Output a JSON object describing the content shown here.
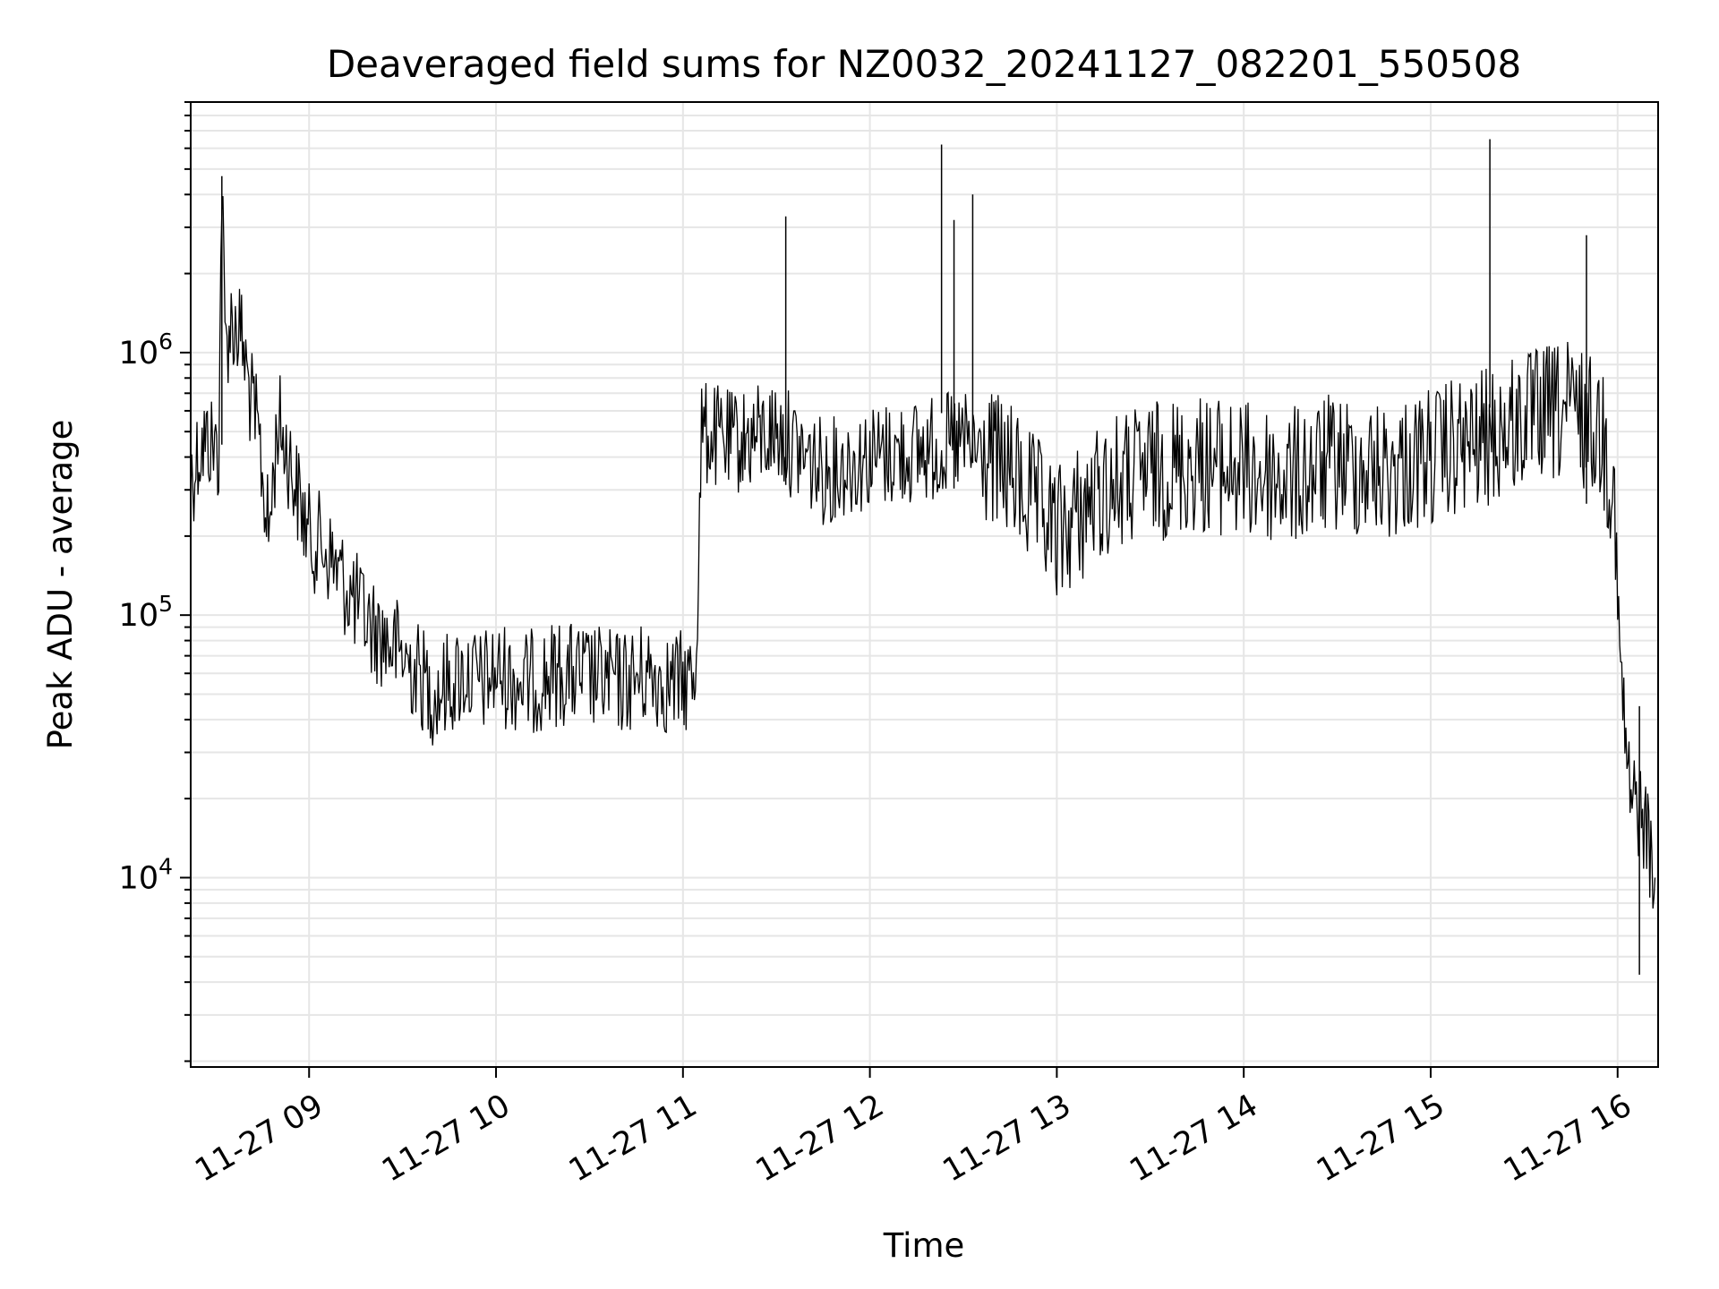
{
  "chart_data": {
    "type": "line",
    "title": "Deaveraged field sums for NZ0032_20241127_082201_550508",
    "xlabel": "Time",
    "ylabel": "Peak ADU - average",
    "yscale": "log",
    "ylim": [
      1900,
      9000000
    ],
    "xlim": [
      "2024-11-27 08:22",
      "2024-11-27 16:13"
    ],
    "grid": true,
    "line_color": "#000000",
    "grid_color": "#e6e6e6",
    "x_ticks": [
      {
        "value": "2024-11-27 09:00",
        "label": "11-27 09"
      },
      {
        "value": "2024-11-27 10:00",
        "label": "11-27 10"
      },
      {
        "value": "2024-11-27 11:00",
        "label": "11-27 11"
      },
      {
        "value": "2024-11-27 12:00",
        "label": "11-27 12"
      },
      {
        "value": "2024-11-27 13:00",
        "label": "11-27 13"
      },
      {
        "value": "2024-11-27 14:00",
        "label": "11-27 14"
      },
      {
        "value": "2024-11-27 15:00",
        "label": "11-27 15"
      },
      {
        "value": "2024-11-27 16:00",
        "label": "11-27 16"
      }
    ],
    "y_ticks": [
      {
        "value": 10000,
        "base": "10",
        "exp": "4"
      },
      {
        "value": 100000,
        "base": "10",
        "exp": "5"
      },
      {
        "value": 1000000,
        "base": "10",
        "exp": "6"
      }
    ],
    "series": [
      {
        "points": [
          [
            "2024-11-27 08:22",
            330000
          ],
          [
            "2024-11-27 08:25",
            440000
          ],
          [
            "2024-11-27 08:28",
            460000
          ],
          [
            "2024-11-27 08:31",
            420000
          ],
          [
            "2024-11-27 08:32",
            4700000
          ],
          [
            "2024-11-27 08:33",
            1100000
          ],
          [
            "2024-11-27 08:35",
            1300000
          ],
          [
            "2024-11-27 08:38",
            1200000
          ],
          [
            "2024-11-27 08:41",
            700000
          ],
          [
            "2024-11-27 08:44",
            450000
          ],
          [
            "2024-11-27 08:47",
            200000
          ],
          [
            "2024-11-27 08:50",
            550000
          ],
          [
            "2024-11-27 08:53",
            420000
          ],
          [
            "2024-11-27 08:56",
            300000
          ],
          [
            "2024-11-27 09:00",
            200000
          ],
          [
            "2024-11-27 09:05",
            180000
          ],
          [
            "2024-11-27 09:10",
            140000
          ],
          [
            "2024-11-27 09:15",
            110000
          ],
          [
            "2024-11-27 09:20",
            90000
          ],
          [
            "2024-11-27 09:25",
            80000
          ],
          [
            "2024-11-27 09:30",
            70000
          ],
          [
            "2024-11-27 09:35",
            60000
          ],
          [
            "2024-11-27 09:40",
            50000
          ],
          [
            "2024-11-27 09:45",
            55000
          ],
          [
            "2024-11-27 09:50",
            60000
          ],
          [
            "2024-11-27 09:55",
            55000
          ],
          [
            "2024-11-27 10:00",
            60000
          ],
          [
            "2024-11-27 10:10",
            55000
          ],
          [
            "2024-11-27 10:20",
            60000
          ],
          [
            "2024-11-27 10:30",
            58000
          ],
          [
            "2024-11-27 10:40",
            55000
          ],
          [
            "2024-11-27 10:50",
            60000
          ],
          [
            "2024-11-27 10:55",
            55000
          ],
          [
            "2024-11-27 11:00",
            55000
          ],
          [
            "2024-11-27 11:04",
            60000
          ],
          [
            "2024-11-27 11:06",
            500000
          ],
          [
            "2024-11-27 11:15",
            450000
          ],
          [
            "2024-11-27 11:30",
            500000
          ],
          [
            "2024-11-27 11:45",
            350000
          ],
          [
            "2024-11-27 12:00",
            400000
          ],
          [
            "2024-11-27 12:15",
            420000
          ],
          [
            "2024-11-27 12:30",
            450000
          ],
          [
            "2024-11-27 12:45",
            350000
          ],
          [
            "2024-11-27 13:00",
            200000
          ],
          [
            "2024-11-27 13:15",
            300000
          ],
          [
            "2024-11-27 13:30",
            350000
          ],
          [
            "2024-11-27 13:45",
            380000
          ],
          [
            "2024-11-27 14:00",
            350000
          ],
          [
            "2024-11-27 14:15",
            330000
          ],
          [
            "2024-11-27 14:30",
            380000
          ],
          [
            "2024-11-27 14:45",
            350000
          ],
          [
            "2024-11-27 15:00",
            400000
          ],
          [
            "2024-11-27 15:15",
            450000
          ],
          [
            "2024-11-27 15:30",
            550000
          ],
          [
            "2024-11-27 15:45",
            600000
          ],
          [
            "2024-11-27 15:55",
            500000
          ],
          [
            "2024-11-27 15:59",
            300000
          ],
          [
            "2024-11-27 16:00",
            100000
          ],
          [
            "2024-11-27 16:02",
            40000
          ],
          [
            "2024-11-27 16:04",
            20000
          ],
          [
            "2024-11-27 16:08",
            18000
          ],
          [
            "2024-11-27 16:12",
            10000
          ]
        ]
      }
    ],
    "spikes": [
      [
        "2024-11-27 08:32",
        4700000
      ],
      [
        "2024-11-27 11:33",
        3300000
      ],
      [
        "2024-11-27 12:23",
        6200000
      ],
      [
        "2024-11-27 12:27",
        3200000
      ],
      [
        "2024-11-27 12:33",
        4000000
      ],
      [
        "2024-11-27 15:19",
        6500000
      ],
      [
        "2024-11-27 15:50",
        2800000
      ],
      [
        "2024-11-27 16:07",
        45000
      ]
    ]
  }
}
